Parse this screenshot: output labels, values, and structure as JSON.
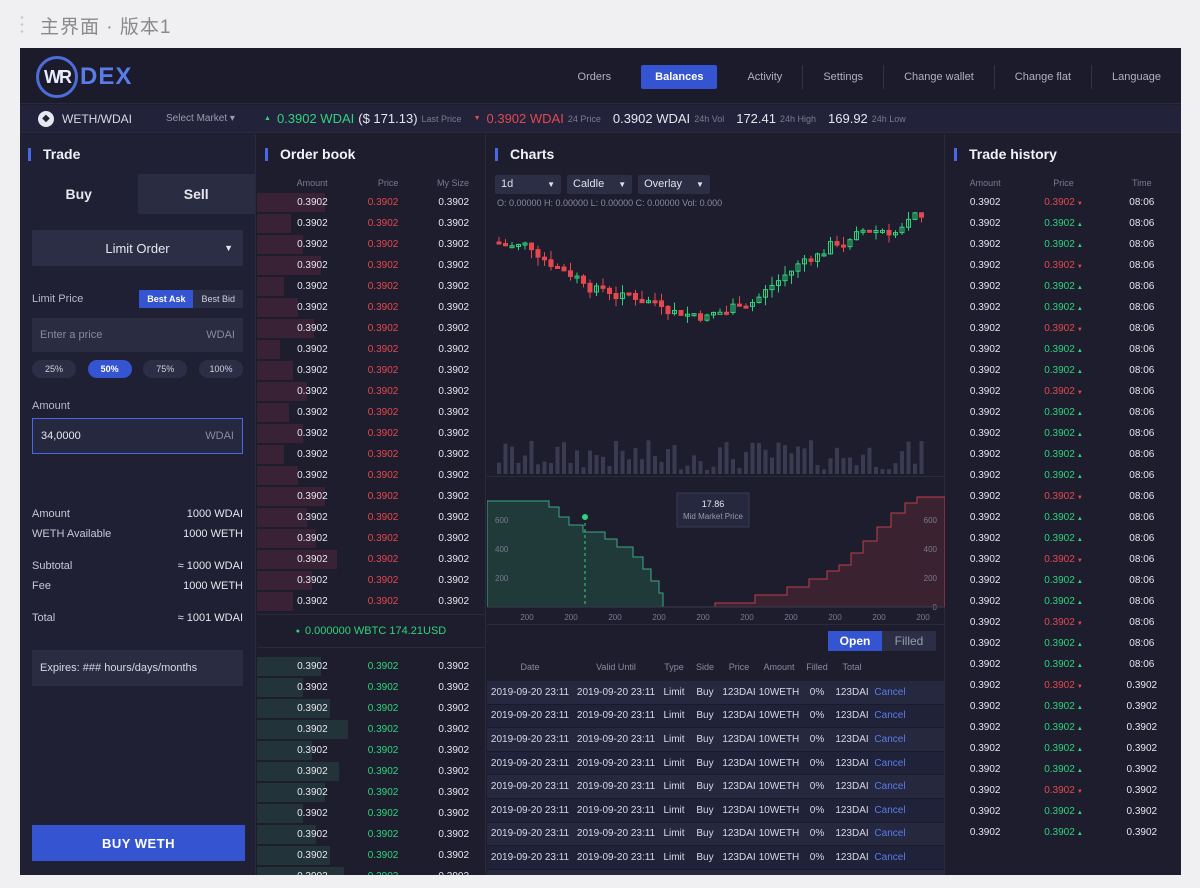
{
  "frame": {
    "title": "主界面 · 版本1"
  },
  "brand": {
    "logo_mark": "WR",
    "logo_text": "DEX"
  },
  "nav": [
    "Orders",
    "Balances",
    "Activity",
    "Settings",
    "Change wallet",
    "Change flat",
    "Language"
  ],
  "nav_active": "Balances",
  "ticker": {
    "pair": "WETH/WDAI",
    "select_market": "Select Market",
    "last_price": "0.3902 WDAI",
    "last_price_usd": "($ 171.13)",
    "last_price_label": "Last Price",
    "change": "0.3902 WDAI",
    "change_label": "24 Price",
    "vol": "0.3902 WDAI",
    "vol_label": "24h Vol",
    "high": "172.41",
    "high_label": "24h High",
    "low": "169.92",
    "low_label": "24h Low"
  },
  "trade": {
    "title": "Trade",
    "buy_tab": "Buy",
    "sell_tab": "Sell",
    "order_type": "Limit Order",
    "limit_price_label": "Limit Price",
    "best_ask": "Best Ask",
    "best_bid": "Best Bid",
    "price_placeholder": "Enter a price",
    "price_unit": "WDAI",
    "percents": [
      "25%",
      "50%",
      "75%",
      "100%"
    ],
    "amount_label": "Amount",
    "amount_value": "34,0000",
    "amount_unit": "WDAI",
    "summary1": [
      {
        "k": "Amount",
        "v": "1000 WDAI"
      },
      {
        "k": "WETH Available",
        "v": "1000 WETH"
      }
    ],
    "summary2": [
      {
        "k": "Subtotal",
        "v": "≈ 1000 WDAI"
      },
      {
        "k": "Fee",
        "v": "1000 WETH"
      }
    ],
    "total_label": "Total",
    "total_value": "≈ 1001 WDAI",
    "expires": "Expires: ### hours/days/months",
    "buy_button": "BUY WETH"
  },
  "orderbook": {
    "title": "Order book",
    "headers": [
      "Amount",
      "Price",
      "My Size"
    ],
    "amount": "0.3902",
    "price": "0.3902",
    "size": "0.3902",
    "ask_depth": [
      0.3,
      0.15,
      0.2,
      0.28,
      0.12,
      0.18,
      0.25,
      0.1,
      0.16,
      0.22,
      0.14,
      0.2,
      0.12,
      0.18,
      0.3,
      0.22,
      0.26,
      0.35,
      0.24,
      0.16
    ],
    "mid": "0.000000 WBTC 174.21USD",
    "bid_depth": [
      0.28,
      0.2,
      0.32,
      0.4,
      0.24,
      0.36,
      0.3,
      0.2,
      0.26,
      0.32,
      0.38
    ]
  },
  "charts": {
    "title": "Charts",
    "interval": "1d",
    "chart_type": "Caldle",
    "overlay": "Overlay",
    "ohlc": "O: 0.00000   H: 0.00000   L: 0.00000   C: 0.00000   Vol: 0.000",
    "depth_tooltip_value": "17.86",
    "depth_tooltip_label": "Mid Market Price",
    "depth_y_ticks": [
      "600",
      "400",
      "200"
    ],
    "depth_y_ticks_right": [
      "600",
      "400",
      "200",
      "0"
    ],
    "depth_x_ticks": [
      "200",
      "200",
      "200",
      "200",
      "200",
      "200",
      "200",
      "200",
      "200",
      "200"
    ],
    "tab_open": "Open",
    "tab_filled": "Filled",
    "order_headers": [
      "Date",
      "Valid Until",
      "Type",
      "Side",
      "Price",
      "Amount",
      "Filled",
      "Total"
    ],
    "order_row": {
      "date": "2019-09-20 23:11",
      "valid": "2019-09-20 23:11",
      "type": "Limit",
      "side": "Buy",
      "price": "123DAI",
      "amount": "10WETH",
      "filled": "0%",
      "total": "123DAI",
      "action": "Cancel"
    },
    "order_count": 9
  },
  "history": {
    "title": "Trade history",
    "headers": [
      "Amount",
      "Price",
      "Time"
    ],
    "rows": [
      {
        "a": "0.3902",
        "p": "0.3902",
        "d": "down",
        "t": "08:06"
      },
      {
        "a": "0.3902",
        "p": "0.3902",
        "d": "up",
        "t": "08:06"
      },
      {
        "a": "0.3902",
        "p": "0.3902",
        "d": "up",
        "t": "08:06"
      },
      {
        "a": "0.3902",
        "p": "0.3902",
        "d": "down",
        "t": "08:06"
      },
      {
        "a": "0.3902",
        "p": "0.3902",
        "d": "up",
        "t": "08:06"
      },
      {
        "a": "0.3902",
        "p": "0.3902",
        "d": "up",
        "t": "08:06"
      },
      {
        "a": "0.3902",
        "p": "0.3902",
        "d": "down",
        "t": "08:06"
      },
      {
        "a": "0.3902",
        "p": "0.3902",
        "d": "up",
        "t": "08:06"
      },
      {
        "a": "0.3902",
        "p": "0.3902",
        "d": "up",
        "t": "08:06"
      },
      {
        "a": "0.3902",
        "p": "0.3902",
        "d": "down",
        "t": "08:06"
      },
      {
        "a": "0.3902",
        "p": "0.3902",
        "d": "up",
        "t": "08:06"
      },
      {
        "a": "0.3902",
        "p": "0.3902",
        "d": "up",
        "t": "08:06"
      },
      {
        "a": "0.3902",
        "p": "0.3902",
        "d": "up",
        "t": "08:06"
      },
      {
        "a": "0.3902",
        "p": "0.3902",
        "d": "up",
        "t": "08:06"
      },
      {
        "a": "0.3902",
        "p": "0.3902",
        "d": "down",
        "t": "08:06"
      },
      {
        "a": "0.3902",
        "p": "0.3902",
        "d": "up",
        "t": "08:06"
      },
      {
        "a": "0.3902",
        "p": "0.3902",
        "d": "up",
        "t": "08:06"
      },
      {
        "a": "0.3902",
        "p": "0.3902",
        "d": "down",
        "t": "08:06"
      },
      {
        "a": "0.3902",
        "p": "0.3902",
        "d": "up",
        "t": "08:06"
      },
      {
        "a": "0.3902",
        "p": "0.3902",
        "d": "up",
        "t": "08:06"
      },
      {
        "a": "0.3902",
        "p": "0.3902",
        "d": "down",
        "t": "08:06"
      },
      {
        "a": "0.3902",
        "p": "0.3902",
        "d": "up",
        "t": "08:06"
      },
      {
        "a": "0.3902",
        "p": "0.3902",
        "d": "up",
        "t": "08:06"
      },
      {
        "a": "0.3902",
        "p": "0.3902",
        "d": "down",
        "t": "0.3902"
      },
      {
        "a": "0.3902",
        "p": "0.3902",
        "d": "up",
        "t": "0.3902"
      },
      {
        "a": "0.3902",
        "p": "0.3902",
        "d": "up",
        "t": "0.3902"
      },
      {
        "a": "0.3902",
        "p": "0.3902",
        "d": "up",
        "t": "0.3902"
      },
      {
        "a": "0.3902",
        "p": "0.3902",
        "d": "up",
        "t": "0.3902"
      },
      {
        "a": "0.3902",
        "p": "0.3902",
        "d": "down",
        "t": "0.3902"
      },
      {
        "a": "0.3902",
        "p": "0.3902",
        "d": "up",
        "t": "0.3902"
      },
      {
        "a": "0.3902",
        "p": "0.3902",
        "d": "up",
        "t": "0.3902"
      }
    ]
  },
  "colors": {
    "accent": "#3454d1",
    "up": "#2ed47a",
    "down": "#e5484d",
    "bg": "#1d1d2e"
  }
}
